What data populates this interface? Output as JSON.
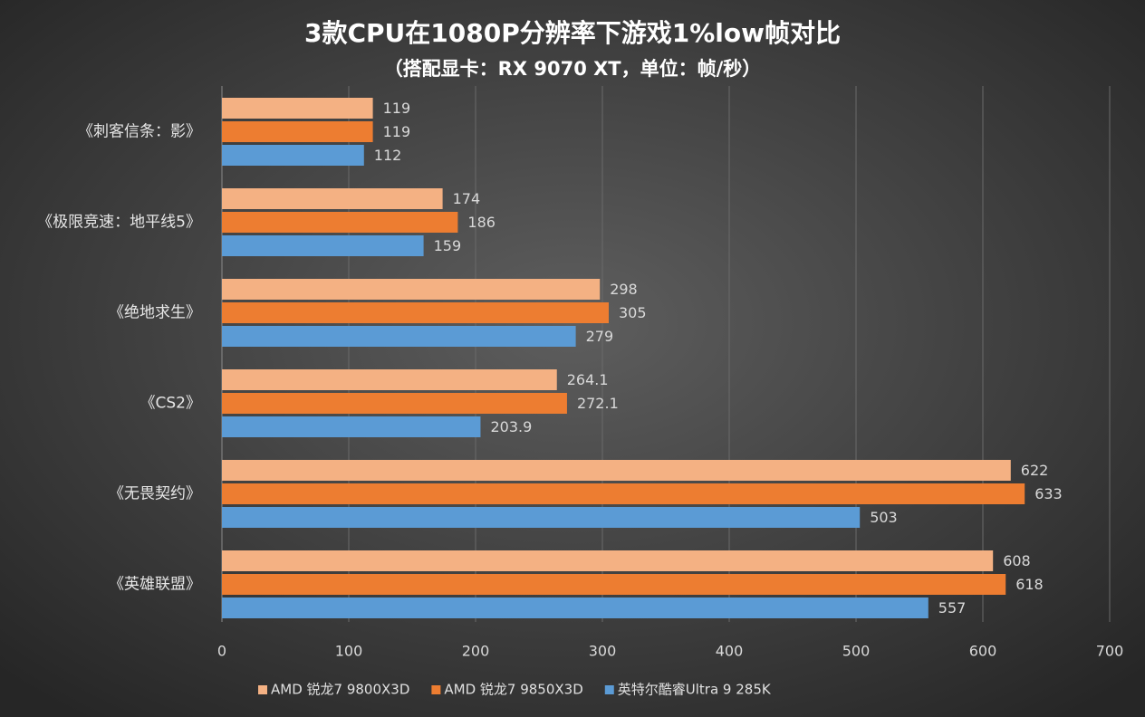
{
  "chart_data": {
    "type": "hbar",
    "title": "3款CPU在1080P分辨率下游戏1%low帧对比",
    "subtitle": "（搭配显卡：RX 9070 XT，单位：帧/秒）",
    "categories": [
      "《刺客信条：影》",
      "《极限竞速：地平线5》",
      "《绝地求生》",
      "《CS2》",
      "《无畏契约》",
      "《英雄联盟》"
    ],
    "series": [
      {
        "name": "AMD 锐龙7 9800X3D",
        "color": "#f4b183",
        "values": [
          119,
          174,
          298,
          264.1,
          622,
          608
        ]
      },
      {
        "name": "AMD 锐龙7 9850X3D",
        "color": "#ed7d31",
        "values": [
          119,
          186,
          305,
          272.1,
          633,
          618
        ]
      },
      {
        "name": "英特尔酷睿Ultra 9 285K",
        "color": "#5b9bd5",
        "values": [
          112,
          159,
          279,
          203.9,
          503,
          557
        ]
      }
    ],
    "xlim": [
      0,
      700
    ],
    "xticks": [
      0,
      100,
      200,
      300,
      400,
      500,
      600,
      700
    ],
    "grid": true,
    "legend": "bottom"
  }
}
